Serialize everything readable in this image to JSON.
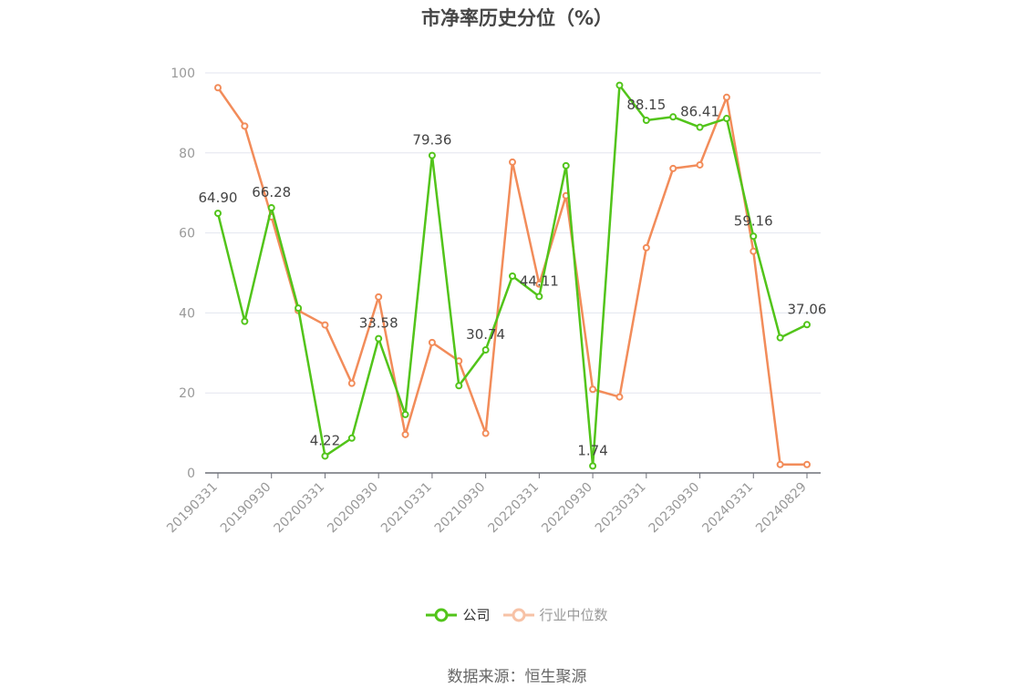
{
  "chart_data": {
    "type": "line",
    "title": "市净率历史分位（%）",
    "ylim": [
      0,
      100
    ],
    "yticks": [
      0,
      20,
      40,
      60,
      80,
      100
    ],
    "x_tick_labels": [
      "20190331",
      "20190930",
      "20200331",
      "20200930",
      "20210331",
      "20210930",
      "20220331",
      "20220930",
      "20230331",
      "20230930",
      "20240331",
      "20240829"
    ],
    "x": [
      "20190331",
      "20190630",
      "20190930",
      "20191231",
      "20200331",
      "20200630",
      "20200930",
      "20201231",
      "20210331",
      "20210630",
      "20210930",
      "20211231",
      "20220331",
      "20220630",
      "20220930",
      "20221231",
      "20230331",
      "20230630",
      "20230930",
      "20231231",
      "20240331",
      "20240630",
      "20240829"
    ],
    "series": [
      {
        "name": "公司",
        "color": "#52c41a",
        "values": [
          64.9,
          37.9,
          66.28,
          41.2,
          4.22,
          8.7,
          33.58,
          14.6,
          79.36,
          21.8,
          30.74,
          49.2,
          44.11,
          76.8,
          1.74,
          96.9,
          88.15,
          89.0,
          86.41,
          88.6,
          59.16,
          33.8,
          37.06
        ],
        "data_labels": {
          "0": "64.90",
          "2": "66.28",
          "4": "4.22",
          "6": "33.58",
          "8": "79.36",
          "10": "30.74",
          "12": "44.11",
          "14": "1.74",
          "16": "88.15",
          "18": "86.41",
          "20": "59.16",
          "22": "37.06"
        }
      },
      {
        "name": "行业中位数",
        "color": "#f28c5a",
        "values": [
          96.3,
          86.7,
          64.0,
          40.6,
          37.0,
          22.4,
          44.0,
          9.6,
          32.6,
          28.0,
          9.9,
          77.7,
          47.2,
          69.3,
          20.9,
          19.0,
          56.3,
          76.1,
          77.0,
          93.9,
          55.4,
          2.1,
          2.1
        ]
      }
    ],
    "grid": true,
    "legend_position": "bottom"
  },
  "legend": {
    "company": "公司",
    "industry": "行业中位数"
  },
  "source_note": "数据来源：恒生聚源"
}
